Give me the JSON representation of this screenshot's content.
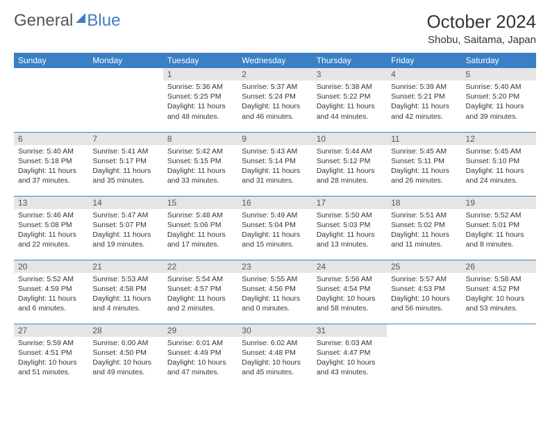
{
  "brand": {
    "part1": "General",
    "part2": "Blue"
  },
  "title": "October 2024",
  "location": "Shobu, Saitama, Japan",
  "colors": {
    "header_bg": "#3b7fc4",
    "header_text": "#ffffff",
    "daynum_bg": "#e5e5e5",
    "border": "#3b7fc4"
  },
  "day_headers": [
    "Sunday",
    "Monday",
    "Tuesday",
    "Wednesday",
    "Thursday",
    "Friday",
    "Saturday"
  ],
  "weeks": [
    [
      null,
      null,
      {
        "n": "1",
        "sr": "Sunrise: 5:36 AM",
        "ss": "Sunset: 5:25 PM",
        "dl": "Daylight: 11 hours and 48 minutes."
      },
      {
        "n": "2",
        "sr": "Sunrise: 5:37 AM",
        "ss": "Sunset: 5:24 PM",
        "dl": "Daylight: 11 hours and 46 minutes."
      },
      {
        "n": "3",
        "sr": "Sunrise: 5:38 AM",
        "ss": "Sunset: 5:22 PM",
        "dl": "Daylight: 11 hours and 44 minutes."
      },
      {
        "n": "4",
        "sr": "Sunrise: 5:39 AM",
        "ss": "Sunset: 5:21 PM",
        "dl": "Daylight: 11 hours and 42 minutes."
      },
      {
        "n": "5",
        "sr": "Sunrise: 5:40 AM",
        "ss": "Sunset: 5:20 PM",
        "dl": "Daylight: 11 hours and 39 minutes."
      }
    ],
    [
      {
        "n": "6",
        "sr": "Sunrise: 5:40 AM",
        "ss": "Sunset: 5:18 PM",
        "dl": "Daylight: 11 hours and 37 minutes."
      },
      {
        "n": "7",
        "sr": "Sunrise: 5:41 AM",
        "ss": "Sunset: 5:17 PM",
        "dl": "Daylight: 11 hours and 35 minutes."
      },
      {
        "n": "8",
        "sr": "Sunrise: 5:42 AM",
        "ss": "Sunset: 5:15 PM",
        "dl": "Daylight: 11 hours and 33 minutes."
      },
      {
        "n": "9",
        "sr": "Sunrise: 5:43 AM",
        "ss": "Sunset: 5:14 PM",
        "dl": "Daylight: 11 hours and 31 minutes."
      },
      {
        "n": "10",
        "sr": "Sunrise: 5:44 AM",
        "ss": "Sunset: 5:12 PM",
        "dl": "Daylight: 11 hours and 28 minutes."
      },
      {
        "n": "11",
        "sr": "Sunrise: 5:45 AM",
        "ss": "Sunset: 5:11 PM",
        "dl": "Daylight: 11 hours and 26 minutes."
      },
      {
        "n": "12",
        "sr": "Sunrise: 5:45 AM",
        "ss": "Sunset: 5:10 PM",
        "dl": "Daylight: 11 hours and 24 minutes."
      }
    ],
    [
      {
        "n": "13",
        "sr": "Sunrise: 5:46 AM",
        "ss": "Sunset: 5:08 PM",
        "dl": "Daylight: 11 hours and 22 minutes."
      },
      {
        "n": "14",
        "sr": "Sunrise: 5:47 AM",
        "ss": "Sunset: 5:07 PM",
        "dl": "Daylight: 11 hours and 19 minutes."
      },
      {
        "n": "15",
        "sr": "Sunrise: 5:48 AM",
        "ss": "Sunset: 5:06 PM",
        "dl": "Daylight: 11 hours and 17 minutes."
      },
      {
        "n": "16",
        "sr": "Sunrise: 5:49 AM",
        "ss": "Sunset: 5:04 PM",
        "dl": "Daylight: 11 hours and 15 minutes."
      },
      {
        "n": "17",
        "sr": "Sunrise: 5:50 AM",
        "ss": "Sunset: 5:03 PM",
        "dl": "Daylight: 11 hours and 13 minutes."
      },
      {
        "n": "18",
        "sr": "Sunrise: 5:51 AM",
        "ss": "Sunset: 5:02 PM",
        "dl": "Daylight: 11 hours and 11 minutes."
      },
      {
        "n": "19",
        "sr": "Sunrise: 5:52 AM",
        "ss": "Sunset: 5:01 PM",
        "dl": "Daylight: 11 hours and 8 minutes."
      }
    ],
    [
      {
        "n": "20",
        "sr": "Sunrise: 5:52 AM",
        "ss": "Sunset: 4:59 PM",
        "dl": "Daylight: 11 hours and 6 minutes."
      },
      {
        "n": "21",
        "sr": "Sunrise: 5:53 AM",
        "ss": "Sunset: 4:58 PM",
        "dl": "Daylight: 11 hours and 4 minutes."
      },
      {
        "n": "22",
        "sr": "Sunrise: 5:54 AM",
        "ss": "Sunset: 4:57 PM",
        "dl": "Daylight: 11 hours and 2 minutes."
      },
      {
        "n": "23",
        "sr": "Sunrise: 5:55 AM",
        "ss": "Sunset: 4:56 PM",
        "dl": "Daylight: 11 hours and 0 minutes."
      },
      {
        "n": "24",
        "sr": "Sunrise: 5:56 AM",
        "ss": "Sunset: 4:54 PM",
        "dl": "Daylight: 10 hours and 58 minutes."
      },
      {
        "n": "25",
        "sr": "Sunrise: 5:57 AM",
        "ss": "Sunset: 4:53 PM",
        "dl": "Daylight: 10 hours and 56 minutes."
      },
      {
        "n": "26",
        "sr": "Sunrise: 5:58 AM",
        "ss": "Sunset: 4:52 PM",
        "dl": "Daylight: 10 hours and 53 minutes."
      }
    ],
    [
      {
        "n": "27",
        "sr": "Sunrise: 5:59 AM",
        "ss": "Sunset: 4:51 PM",
        "dl": "Daylight: 10 hours and 51 minutes."
      },
      {
        "n": "28",
        "sr": "Sunrise: 6:00 AM",
        "ss": "Sunset: 4:50 PM",
        "dl": "Daylight: 10 hours and 49 minutes."
      },
      {
        "n": "29",
        "sr": "Sunrise: 6:01 AM",
        "ss": "Sunset: 4:49 PM",
        "dl": "Daylight: 10 hours and 47 minutes."
      },
      {
        "n": "30",
        "sr": "Sunrise: 6:02 AM",
        "ss": "Sunset: 4:48 PM",
        "dl": "Daylight: 10 hours and 45 minutes."
      },
      {
        "n": "31",
        "sr": "Sunrise: 6:03 AM",
        "ss": "Sunset: 4:47 PM",
        "dl": "Daylight: 10 hours and 43 minutes."
      },
      null,
      null
    ]
  ]
}
